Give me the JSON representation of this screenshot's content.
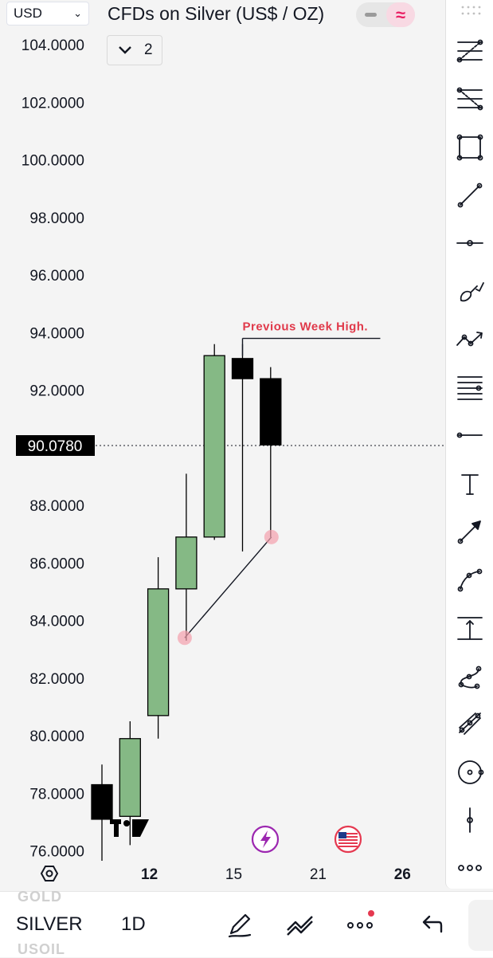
{
  "header": {
    "currency_select": "USD",
    "title": "CFDs on Silver (US$ / OZ)",
    "toggle_icon": "approx-icon",
    "interval_count": "2"
  },
  "chart_data": {
    "type": "candlestick",
    "timeframe": "1D",
    "ylim": [
      75.5,
      105
    ],
    "y_ticks": [
      "104.0000",
      "102.0000",
      "100.0000",
      "98.0000",
      "96.0000",
      "94.0000",
      "92.0000",
      "90.0000",
      "88.0000",
      "86.0000",
      "84.0000",
      "82.0000",
      "80.0000",
      "78.0000",
      "76.0000"
    ],
    "x_ticks": [
      {
        "label": "12",
        "bold": true,
        "pos": 2
      },
      {
        "label": "15",
        "bold": false,
        "pos": 5
      },
      {
        "label": "21",
        "bold": false,
        "pos": 8
      },
      {
        "label": "26",
        "bold": true,
        "pos": 11
      }
    ],
    "last_price_label": "90.0780",
    "last_price": 90.078,
    "candles": [
      {
        "open": 78.3,
        "high": 79.0,
        "low": 75.6,
        "close": 77.1,
        "color": "down"
      },
      {
        "open": 77.2,
        "high": 80.5,
        "low": 76.2,
        "close": 79.9,
        "color": "up"
      },
      {
        "open": 80.7,
        "high": 86.2,
        "low": 79.9,
        "close": 85.1,
        "color": "up"
      },
      {
        "open": 85.1,
        "high": 89.1,
        "low": 83.3,
        "close": 86.9,
        "color": "up"
      },
      {
        "open": 86.9,
        "high": 93.6,
        "low": 86.8,
        "close": 93.2,
        "color": "up"
      },
      {
        "open": 93.1,
        "high": 93.6,
        "low": 86.4,
        "close": 92.4,
        "color": "down"
      },
      {
        "open": 92.4,
        "high": 92.8,
        "low": 86.9,
        "close": 90.1,
        "color": "down"
      }
    ],
    "annotations": {
      "previous_week_high": {
        "label": "Previous Week High.",
        "price": 93.8,
        "from": 5,
        "to": 9.9
      },
      "trend_line": {
        "from": {
          "x": 3,
          "price": 83.4
        },
        "to": {
          "x": 6,
          "price": 86.9
        }
      }
    },
    "colors": {
      "up": "#85b985",
      "down": "#000000",
      "annotation": "#e0394a",
      "marker": "#f4a0ad"
    }
  },
  "toolbar_right": [
    "fib-retracement-icon",
    "fib-extension-icon",
    "rectangle-icon",
    "trend-line-icon",
    "horizontal-ray-icon",
    "brush-icon",
    "path-icon",
    "parallel-lines-icon",
    "horizontal-line-icon",
    "text-icon",
    "arrow-icon",
    "curve-icon",
    "price-range-icon",
    "spline-icon",
    "regression-icon",
    "circle-icon",
    "cross-line-icon",
    "more-icon"
  ],
  "bottom_bar": {
    "ghost_above": "GOLD",
    "symbol": "SILVER",
    "ghost_below": "USOIL",
    "timeframe": "1D"
  }
}
